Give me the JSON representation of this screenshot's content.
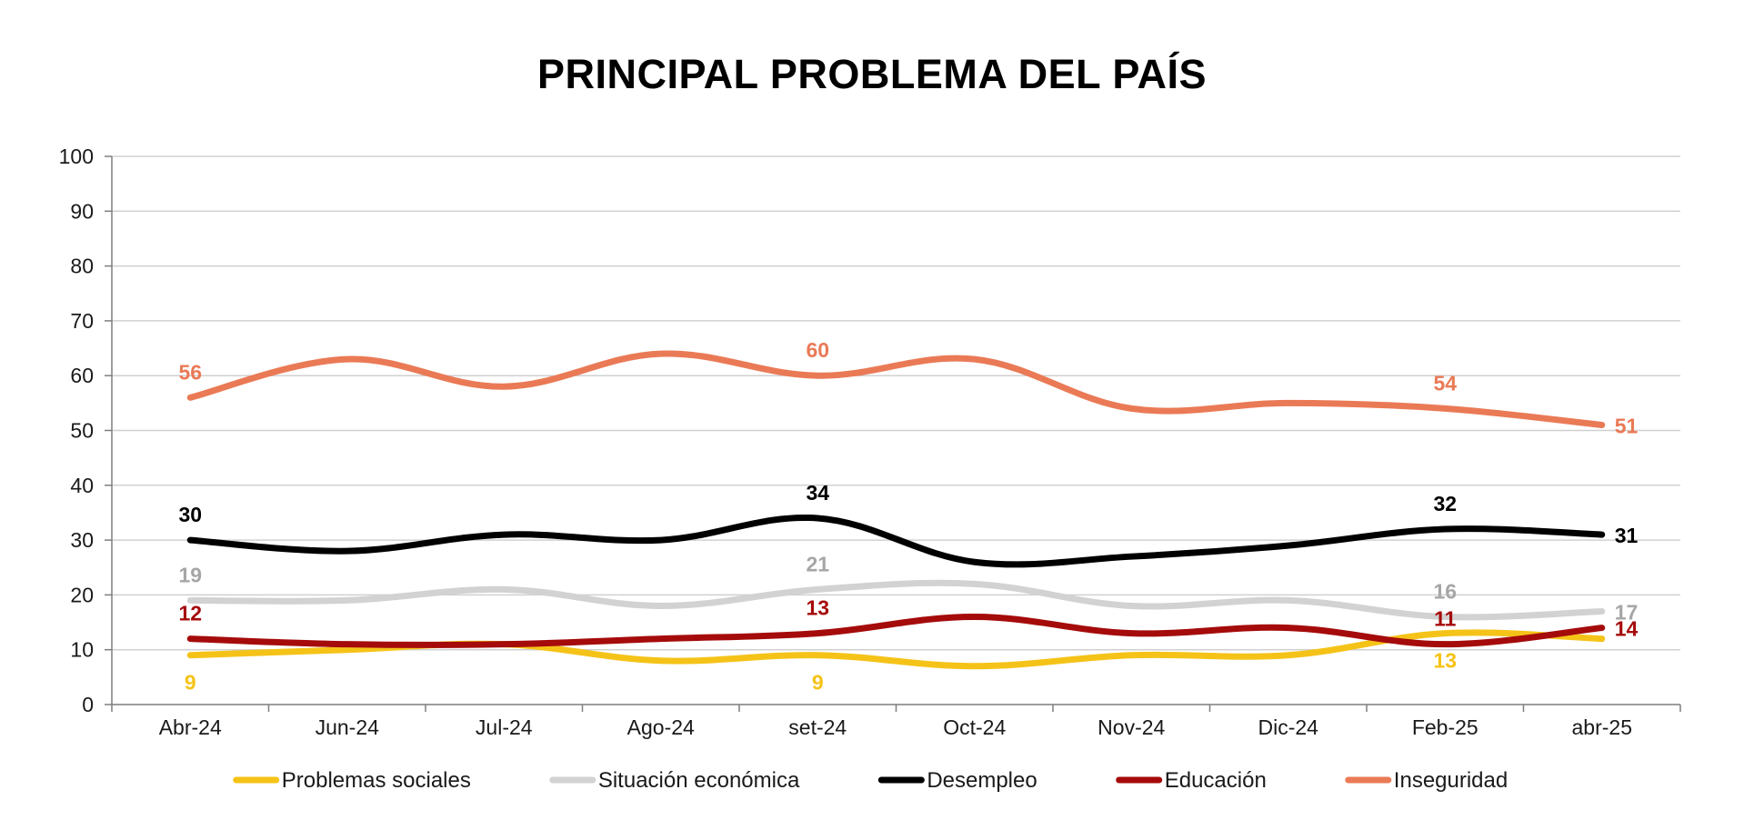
{
  "chart_data": {
    "type": "line",
    "title": "PRINCIPAL PROBLEMA DEL PAÍS",
    "xlabel": "",
    "ylabel": "",
    "ylim": [
      0,
      100
    ],
    "yticks": [
      0,
      10,
      20,
      30,
      40,
      50,
      60,
      70,
      80,
      90,
      100
    ],
    "grid": true,
    "legend_position": "bottom",
    "categories": [
      "Abr-24",
      "Jun-24",
      "Jul-24",
      "Ago-24",
      "set-24",
      "Oct-24",
      "Nov-24",
      "Dic-24",
      "Feb-25",
      "abr-25"
    ],
    "series": [
      {
        "name": "Problemas sociales",
        "color": "#F5C318",
        "label_color": "#F5C318",
        "values": [
          9,
          10,
          11,
          8,
          9,
          7,
          9,
          9,
          13,
          12
        ],
        "labels": [
          {
            "i": 0,
            "text": "9",
            "pos": "below"
          },
          {
            "i": 4,
            "text": "9",
            "pos": "below"
          },
          {
            "i": 8,
            "text": "13",
            "pos": "below"
          }
        ]
      },
      {
        "name": "Situación económica",
        "color": "#D2D2D2",
        "label_color": "#A6A6A6",
        "values": [
          19,
          19,
          21,
          18,
          21,
          22,
          18,
          19,
          16,
          17
        ],
        "labels": [
          {
            "i": 0,
            "text": "19",
            "pos": "above"
          },
          {
            "i": 4,
            "text": "21",
            "pos": "above"
          },
          {
            "i": 8,
            "text": "16",
            "pos": "above"
          },
          {
            "i": 9,
            "text": "17",
            "pos": "right"
          }
        ]
      },
      {
        "name": "Desempleo",
        "color": "#000000",
        "label_color": "#000000",
        "values": [
          30,
          28,
          31,
          30,
          34,
          26,
          27,
          29,
          32,
          31
        ],
        "labels": [
          {
            "i": 0,
            "text": "30",
            "pos": "above"
          },
          {
            "i": 4,
            "text": "34",
            "pos": "above"
          },
          {
            "i": 8,
            "text": "32",
            "pos": "above"
          },
          {
            "i": 9,
            "text": "31",
            "pos": "right"
          }
        ]
      },
      {
        "name": "Educación",
        "color": "#A50B0B",
        "label_color": "#A50B0B",
        "values": [
          12,
          11,
          11,
          12,
          13,
          16,
          13,
          14,
          11,
          14
        ],
        "labels": [
          {
            "i": 0,
            "text": "12",
            "pos": "above"
          },
          {
            "i": 4,
            "text": "13",
            "pos": "above"
          },
          {
            "i": 8,
            "text": "11",
            "pos": "above"
          },
          {
            "i": 9,
            "text": "14",
            "pos": "right"
          }
        ]
      },
      {
        "name": "Inseguridad",
        "color": "#EA7A56",
        "label_color": "#EA7A56",
        "values": [
          56,
          63,
          58,
          64,
          60,
          63,
          54,
          55,
          54,
          51
        ],
        "labels": [
          {
            "i": 0,
            "text": "56",
            "pos": "above"
          },
          {
            "i": 4,
            "text": "60",
            "pos": "above"
          },
          {
            "i": 8,
            "text": "54",
            "pos": "above"
          },
          {
            "i": 9,
            "text": "51",
            "pos": "right"
          }
        ]
      }
    ]
  }
}
